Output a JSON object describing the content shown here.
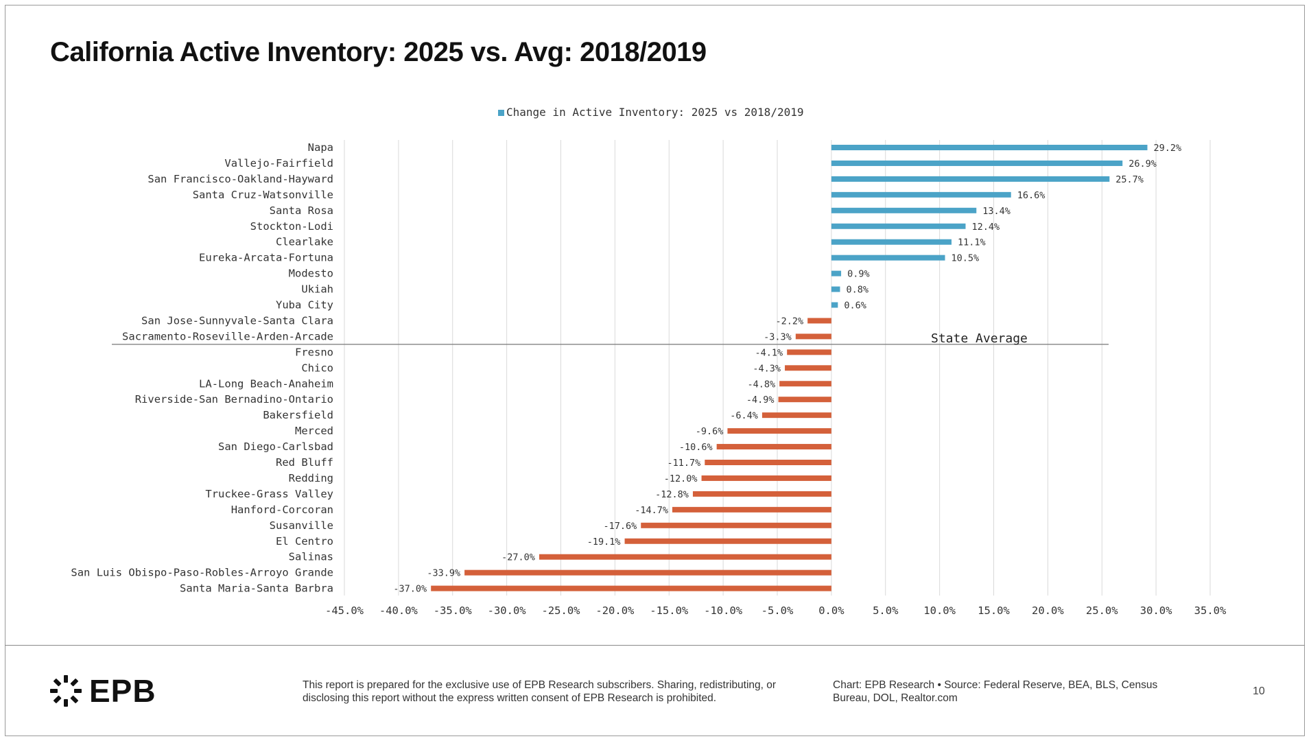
{
  "header": {
    "title": "California Active Inventory: 2025 vs. Avg: 2018/2019"
  },
  "footer": {
    "brand": "EPB",
    "disclaimer": "This report is prepared for the exclusive use of EPB Research subscribers. Sharing, redistributing, or disclosing this report without the express written consent of EPB Research is prohibited.",
    "sources": "Chart: EPB Research  •  Source: Federal Reserve, BEA, BLS, Census Bureau, DOL, Realtor.com",
    "page_number": "10"
  },
  "colors": {
    "positive": "#4BA3C7",
    "negative": "#D4603A",
    "grid": "#d9d9d9",
    "text": "#333333"
  },
  "chart_data": {
    "type": "bar",
    "orientation": "horizontal",
    "title": "",
    "legend": {
      "placement": "top-center",
      "entries": [
        "Change in Active Inventory: 2025 vs 2018/2019"
      ]
    },
    "xlim": [
      -45,
      35
    ],
    "x_ticks": [
      -45,
      -40,
      -35,
      -30,
      -25,
      -20,
      -15,
      -10,
      -5,
      0,
      5,
      10,
      15,
      20,
      25,
      30,
      35
    ],
    "x_tick_labels": [
      "-45.0%",
      "-40.0%",
      "-35.0%",
      "-30.0%",
      "-25.0%",
      "-20.0%",
      "-15.0%",
      "-10.0%",
      "-5.0%",
      "0.0%",
      "5.0%",
      "10.0%",
      "15.0%",
      "20.0%",
      "25.0%",
      "30.0%",
      "35.0%"
    ],
    "grid": "vertical",
    "categories": [
      "Napa",
      "Vallejo-Fairfield",
      "San Francisco-Oakland-Hayward",
      "Santa Cruz-Watsonville",
      "Santa Rosa",
      "Stockton-Lodi",
      "Clearlake",
      "Eureka-Arcata-Fortuna",
      "Modesto",
      "Ukiah",
      "Yuba City",
      "San Jose-Sunnyvale-Santa Clara",
      "Sacramento-Roseville-Arden-Arcade",
      "Fresno",
      "Chico",
      "LA-Long Beach-Anaheim",
      "Riverside-San Bernadino-Ontario",
      "Bakersfield",
      "Merced",
      "San Diego-Carlsbad",
      "Red Bluff",
      "Redding",
      "Truckee-Grass Valley",
      "Hanford-Corcoran",
      "Susanville",
      "El Centro",
      "Salinas",
      "San Luis Obispo-Paso-Robles-Arroyo Grande",
      "Santa Maria-Santa Barbra"
    ],
    "series": [
      {
        "name": "Change in Active Inventory: 2025 vs 2018/2019",
        "values": [
          29.2,
          26.9,
          25.7,
          16.6,
          13.4,
          12.4,
          11.1,
          10.5,
          0.9,
          0.8,
          0.6,
          -2.2,
          -3.3,
          -4.1,
          -4.3,
          -4.8,
          -4.9,
          -6.4,
          -9.6,
          -10.6,
          -11.7,
          -12.0,
          -12.8,
          -14.7,
          -17.6,
          -19.1,
          -27.0,
          -33.9,
          -37.0
        ],
        "labels": [
          "29.2%",
          "26.9%",
          "25.7%",
          "16.6%",
          "13.4%",
          "12.4%",
          "11.1%",
          "10.5%",
          "0.9%",
          "0.8%",
          "0.6%",
          "-2.2%",
          "-3.3%",
          "-4.1%",
          "-4.3%",
          "-4.8%",
          "-4.9%",
          "-6.4%",
          "-9.6%",
          "-10.6%",
          "-11.7%",
          "-12.0%",
          "-12.8%",
          "-14.7%",
          "-17.6%",
          "-19.1%",
          "-27.0%",
          "-33.9%",
          "-37.0%"
        ]
      }
    ],
    "annotations": [
      {
        "text": "State Average",
        "between": [
          "Sacramento-Roseville-Arden-Arcade",
          "Fresno"
        ]
      }
    ]
  }
}
